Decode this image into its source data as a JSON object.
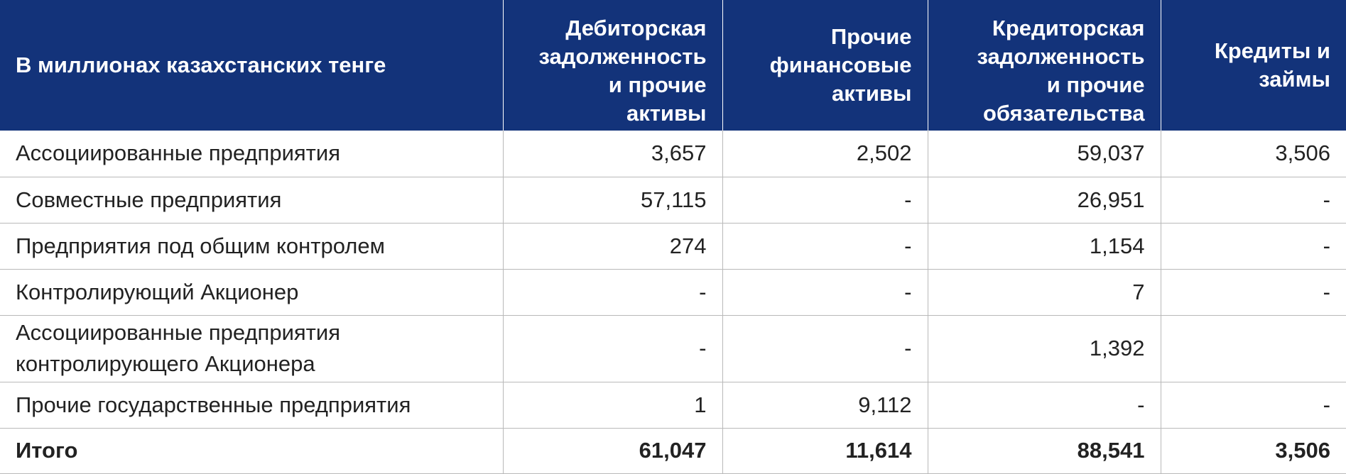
{
  "header": {
    "label": "В миллионах казахстанских тенге",
    "col1": "Дебиторская\nзадолженность\nи прочие\nактивы",
    "col2": "Прочие\nфинансовые\nактивы",
    "col3": "Кредиторская\nзадолженность\nи прочие\nобязательства",
    "col4": "Кредиты и\nзаймы"
  },
  "rows": [
    {
      "label": "Ассоциированные предприятия",
      "c1": "3,657",
      "c2": "2,502",
      "c3": "59,037",
      "c4": "3,506"
    },
    {
      "label": "Совместные предприятия",
      "c1": "57,115",
      "c2": "-",
      "c3": "26,951",
      "c4": "-"
    },
    {
      "label": "Предприятия под общим контролем",
      "c1": "274",
      "c2": "-",
      "c3": "1,154",
      "c4": "-"
    },
    {
      "label": "Контролирующий Акционер",
      "c1": "-",
      "c2": "-",
      "c3": "7",
      "c4": "-"
    },
    {
      "label": "Ассоциированные предприятия\nконтролирующего Акционера",
      "c1": "-",
      "c2": "-",
      "c3": "1,392",
      "c4": ""
    },
    {
      "label": "Прочие государственные предприятия",
      "c1": "1",
      "c2": "9,112",
      "c3": "-",
      "c4": "-"
    }
  ],
  "total": {
    "label": "Итого",
    "c1": "61,047",
    "c2": "11,614",
    "c3": "88,541",
    "c4": "3,506"
  }
}
